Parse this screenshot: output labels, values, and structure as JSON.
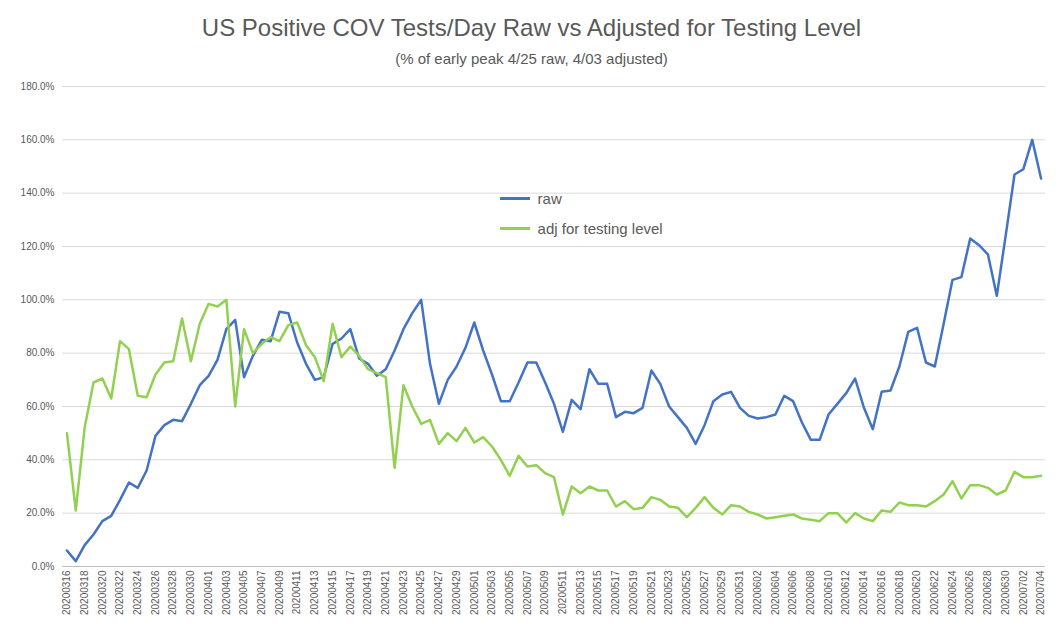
{
  "chart_data": {
    "type": "line",
    "title": "US Positive COV Tests/Day Raw vs Adjusted for Testing Level",
    "subtitle": "(% of early peak 4/25 raw, 4/03 adjusted)",
    "categories": [
      "20200316",
      null,
      "20200318",
      null,
      "20200320",
      null,
      "20200322",
      null,
      "20200324",
      null,
      "20200326",
      null,
      "20200328",
      null,
      "20200330",
      null,
      "20200401",
      null,
      "20200403",
      null,
      "20200405",
      null,
      "20200407",
      null,
      "20200409",
      null,
      "20200411",
      null,
      "20200413",
      null,
      "20200415",
      null,
      "20200417",
      null,
      "20200419",
      null,
      "20200421",
      null,
      "20200423",
      null,
      "20200425",
      null,
      "20200427",
      null,
      "20200429",
      null,
      "20200501",
      null,
      "20200503",
      null,
      "20200505",
      null,
      "20200507",
      null,
      "20200509",
      null,
      "20200511",
      null,
      "20200513",
      null,
      "20200515",
      null,
      "20200517",
      null,
      "20200519",
      null,
      "20200521",
      null,
      "20200523",
      null,
      "20200525",
      null,
      "20200527",
      null,
      "20200529",
      null,
      "20200531",
      null,
      "20200602",
      null,
      "20200604",
      null,
      "20200606",
      null,
      "20200608",
      null,
      "20200610",
      null,
      "20200612",
      null,
      "20200614",
      null,
      "20200616",
      null,
      "20200618",
      null,
      "20200620",
      null,
      "20200622",
      null,
      "20200624",
      null,
      "20200626",
      null,
      "20200628",
      null,
      "20200630",
      null,
      "20200702",
      null,
      "20200704"
    ],
    "series": [
      {
        "name": "raw",
        "color": "#4472c4",
        "values": [
          6,
          2,
          8,
          12,
          17,
          19,
          25,
          31.5,
          29.5,
          36,
          49,
          53,
          55,
          54.5,
          61,
          68,
          71.5,
          77.5,
          89,
          92.5,
          71,
          79,
          85,
          84.5,
          95.5,
          95,
          84,
          76,
          70,
          71,
          83.5,
          85.5,
          89,
          78,
          76,
          71.5,
          74,
          81,
          89,
          95,
          100,
          76,
          61,
          70,
          75,
          82,
          91.5,
          81,
          72,
          62,
          62,
          69,
          76.5,
          76.5,
          69,
          61,
          50.5,
          62.5,
          59,
          74,
          68.5,
          68.5,
          56,
          58,
          57.5,
          59.5,
          73.5,
          68.5,
          60,
          56,
          52,
          46,
          53,
          62,
          64.5,
          65.5,
          59.5,
          56.5,
          55.5,
          56,
          57,
          64,
          62,
          54,
          47.5,
          47.5,
          57,
          61,
          65,
          70.5,
          59.5,
          51.5,
          65.5,
          66,
          75,
          88,
          89.5,
          76.5,
          75,
          91,
          107.5,
          108.5,
          123,
          120.5,
          117,
          101.5,
          124,
          147,
          149,
          160,
          145.5
        ]
      },
      {
        "name": "adj for testing level",
        "color": "#92d050",
        "values": [
          50,
          21,
          52,
          69,
          70.5,
          63,
          84.5,
          81.5,
          64,
          63.5,
          72,
          76.5,
          77,
          93,
          77,
          91,
          98.5,
          97.5,
          100,
          60,
          89,
          80,
          83.5,
          86,
          84.5,
          90.5,
          91.5,
          83,
          78.5,
          69.5,
          91,
          78.5,
          82.5,
          79,
          74,
          72.5,
          71,
          37,
          68,
          60,
          53.5,
          55,
          46,
          50,
          47,
          52,
          46.5,
          48.5,
          45,
          40,
          34,
          41.5,
          37.5,
          38,
          35,
          33.5,
          19.5,
          30,
          27.5,
          30,
          28.5,
          28.5,
          22.5,
          24.5,
          21.5,
          22,
          26,
          25,
          22.5,
          22,
          18.5,
          22,
          26,
          22,
          19.5,
          23,
          22.5,
          20.5,
          19.5,
          18,
          18.5,
          19,
          19.5,
          18,
          17.5,
          17,
          20,
          20,
          16.5,
          20,
          18,
          17,
          21,
          20.5,
          24,
          23,
          23,
          22.5,
          24.5,
          27,
          32,
          25.5,
          30.5,
          30.5,
          29.5,
          27,
          28.5,
          35.5,
          33.5,
          33.5,
          34
        ]
      }
    ],
    "ylim": [
      0,
      180
    ],
    "yticks": [
      {
        "value": 0,
        "label": "0.0%"
      },
      {
        "value": 20,
        "label": "20.0%"
      },
      {
        "value": 40,
        "label": "40.0%"
      },
      {
        "value": 60,
        "label": "60.0%"
      },
      {
        "value": 80,
        "label": "80.0%"
      },
      {
        "value": 100,
        "label": "100.0%"
      },
      {
        "value": 120,
        "label": "120.0%"
      },
      {
        "value": 140,
        "label": "140.0%"
      },
      {
        "value": 160,
        "label": "160.0%"
      },
      {
        "value": 180,
        "label": "180.0%"
      }
    ],
    "grid": true,
    "legend": "center"
  }
}
